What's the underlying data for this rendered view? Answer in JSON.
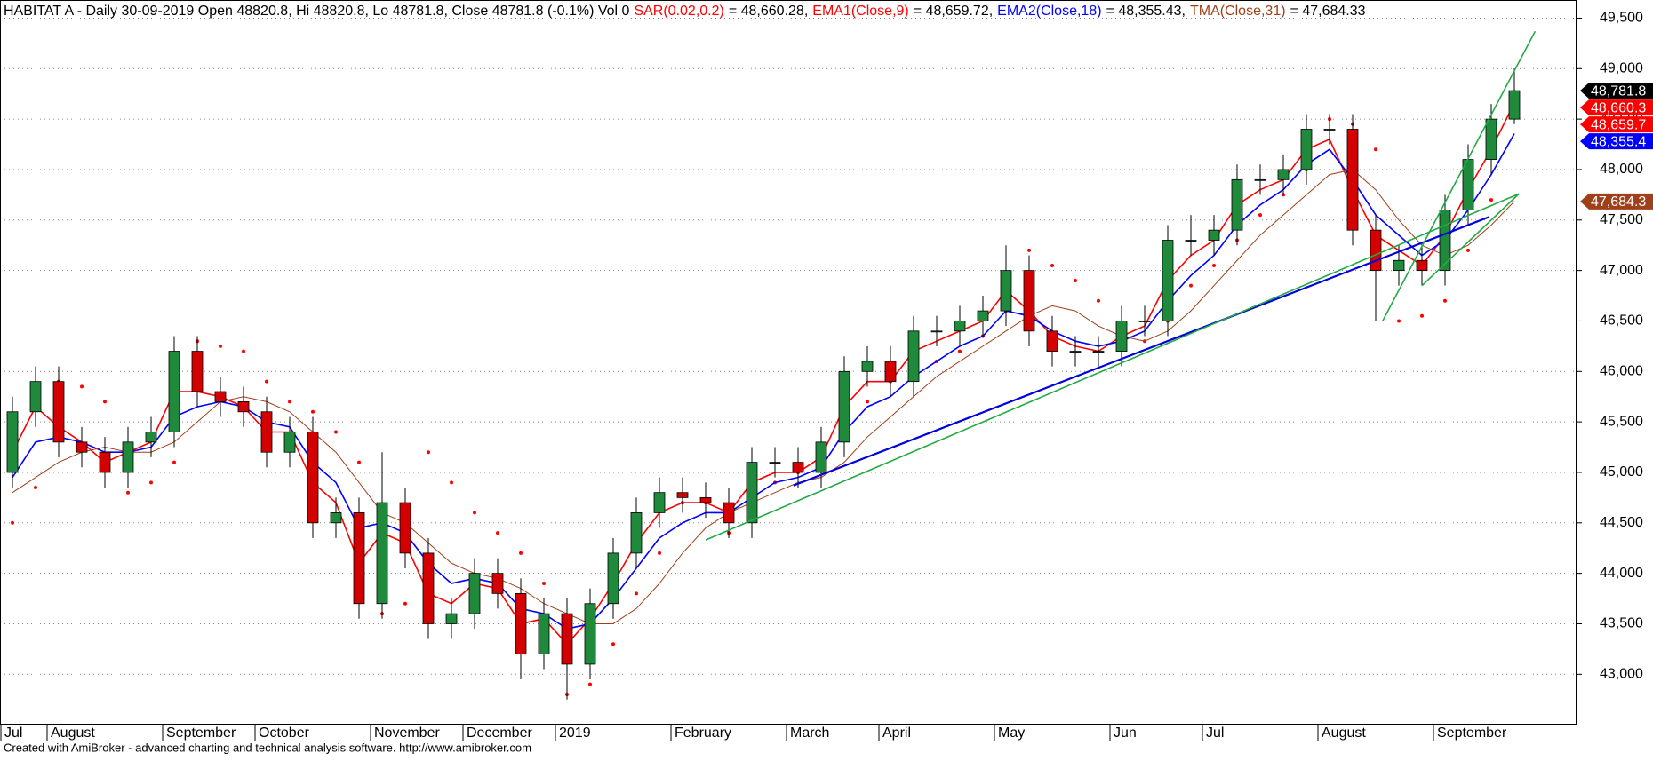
{
  "chart_data": {
    "type": "candlestick",
    "title": "HABITAT A - Daily 30-09-2019 Open 48820.8, Hi 48820.8, Lo 48781.8, Close 48781.8 (-0.1%) Vol 0",
    "footer": "Created with AmiBroker - advanced charting and technical analysis software. http://www.amibroker.com",
    "categories": [
      "Jul",
      null,
      "August",
      null,
      null,
      null,
      null,
      "September",
      null,
      null,
      null,
      "October",
      null,
      null,
      null,
      null,
      "November",
      null,
      null,
      null,
      "December",
      null,
      null,
      null,
      "2019",
      null,
      null,
      null,
      null,
      "February",
      null,
      null,
      null,
      null,
      "March",
      null,
      null,
      null,
      "April",
      null,
      null,
      null,
      null,
      "May",
      null,
      null,
      null,
      null,
      "Jun",
      null,
      null,
      null,
      "Jul",
      null,
      null,
      null,
      null,
      "August",
      null,
      null,
      null,
      null,
      "September",
      null,
      null,
      null
    ],
    "open": [
      45000,
      45600,
      45900,
      45300,
      45200,
      45000,
      45300,
      45400,
      46200,
      45800,
      45700,
      45600,
      45200,
      45400,
      44500,
      44600,
      43700,
      44700,
      44200,
      43500,
      43600,
      44000,
      43800,
      43200,
      43600,
      43100,
      43700,
      44200,
      44600,
      44800,
      44750,
      44700,
      44500,
      45100,
      45100,
      45000,
      45300,
      46000,
      46100,
      45900,
      46400,
      46400,
      46500,
      46600,
      47000,
      46400,
      46200,
      46200,
      46200,
      46500,
      46500,
      47300,
      47300,
      47400,
      47900,
      47900,
      48000,
      48400,
      48400,
      47400,
      47000,
      47100,
      47000,
      47600,
      48100,
      48500
    ],
    "high": [
      45750,
      46050,
      46050,
      45450,
      45350,
      45450,
      45550,
      46350,
      46350,
      45950,
      45850,
      45750,
      45550,
      45550,
      44750,
      44750,
      45200,
      44850,
      44350,
      43750,
      44150,
      44150,
      43950,
      43750,
      43750,
      43850,
      44350,
      44750,
      44950,
      44950,
      44900,
      44850,
      45250,
      45250,
      45250,
      45450,
      46150,
      46250,
      46250,
      46550,
      46550,
      46650,
      46750,
      47250,
      47150,
      46550,
      46350,
      46350,
      46650,
      46650,
      47450,
      47550,
      47550,
      48050,
      48050,
      48150,
      48550,
      48550,
      48550,
      47550,
      47250,
      47250,
      47750,
      48250,
      48650,
      49000
    ],
    "low": [
      44850,
      45450,
      45150,
      45050,
      44850,
      44850,
      45150,
      45250,
      45650,
      45550,
      45450,
      45050,
      45050,
      44350,
      44350,
      43550,
      43550,
      44050,
      43350,
      43350,
      43450,
      43650,
      42950,
      43050,
      42750,
      42950,
      43550,
      44050,
      44450,
      44600,
      44550,
      44350,
      44350,
      44950,
      44850,
      44850,
      45150,
      45850,
      45750,
      45750,
      46250,
      46250,
      46350,
      46450,
      46250,
      46050,
      46050,
      46050,
      46050,
      46350,
      46350,
      47150,
      47150,
      47250,
      47750,
      47750,
      47850,
      48250,
      47250,
      46500,
      46850,
      46850,
      46850,
      47450,
      47950,
      48450
    ],
    "close": [
      45600,
      45900,
      45300,
      45200,
      45000,
      45300,
      45400,
      46200,
      45800,
      45700,
      45600,
      45200,
      45400,
      44500,
      44600,
      43700,
      44700,
      44200,
      43500,
      43600,
      44000,
      43800,
      43200,
      43600,
      43100,
      43700,
      44200,
      44600,
      44800,
      44750,
      44700,
      44500,
      45100,
      45100,
      45000,
      45300,
      46000,
      46100,
      45900,
      46400,
      46400,
      46500,
      46600,
      47000,
      46400,
      46200,
      46200,
      46200,
      46500,
      46500,
      47300,
      47300,
      47400,
      47900,
      47900,
      48000,
      48400,
      48400,
      47400,
      47000,
      47100,
      47000,
      47600,
      48100,
      48500,
      48781.8
    ],
    "up_color": "#1f8a3c",
    "down_color": "#d40000",
    "indicators": [
      {
        "name": "SAR(0.02,0.2)",
        "value_label": "= 48,660.28,",
        "color": "#ff0000",
        "style": "dots",
        "values": [
          44500,
          44850,
          45900,
          45850,
          45700,
          44800,
          44900,
          45100,
          46300,
          46250,
          46200,
          45900,
          45700,
          45600,
          45400,
          45100,
          43600,
          43700,
          45200,
          44900,
          44600,
          44400,
          44200,
          43900,
          42800,
          42900,
          43300,
          43800,
          44200,
          44700,
          44700,
          44400,
          44700,
          44900,
          45000,
          45200,
          45400,
          45700,
          45900,
          46000,
          46100,
          46200,
          46350,
          46600,
          47200,
          47050,
          46900,
          46700,
          46300,
          46300,
          46500,
          46850,
          47050,
          47300,
          47550,
          47750,
          48000,
          48500,
          48450,
          48200,
          46500,
          46550,
          46700,
          47200,
          47700,
          48660.28
        ]
      },
      {
        "name": "EMA1(Close,9)",
        "value_label": "= 48,659.72,",
        "color": "#ff0000",
        "style": "line",
        "values": [
          45200,
          45650,
          45450,
          45300,
          45100,
          45200,
          45300,
          45800,
          45800,
          45750,
          45650,
          45400,
          45400,
          44900,
          44700,
          44100,
          44400,
          44300,
          43800,
          43700,
          43900,
          43850,
          43500,
          43550,
          43300,
          43550,
          43900,
          44300,
          44600,
          44700,
          44700,
          44600,
          44900,
          45000,
          45000,
          45150,
          45650,
          45900,
          45900,
          46200,
          46300,
          46400,
          46500,
          46800,
          46600,
          46350,
          46250,
          46200,
          46350,
          46450,
          46900,
          47150,
          47300,
          47650,
          47800,
          47900,
          48200,
          48300,
          47800,
          47350,
          47200,
          47050,
          47350,
          47800,
          48200,
          48659.72
        ]
      },
      {
        "name": "EMA2(Close,18)",
        "value_label": "= 48,355.43,",
        "color": "#0000ff",
        "style": "line",
        "values": [
          44950,
          45300,
          45350,
          45300,
          45200,
          45200,
          45250,
          45550,
          45650,
          45700,
          45650,
          45500,
          45450,
          45100,
          44900,
          44450,
          44500,
          44400,
          44100,
          43900,
          43950,
          43900,
          43650,
          43600,
          43450,
          43500,
          43750,
          44050,
          44350,
          44500,
          44600,
          44600,
          44750,
          44900,
          44950,
          45050,
          45400,
          45650,
          45750,
          45950,
          46100,
          46250,
          46350,
          46600,
          46550,
          46400,
          46300,
          46250,
          46300,
          46400,
          46700,
          46950,
          47150,
          47450,
          47650,
          47800,
          48050,
          48200,
          47900,
          47550,
          47350,
          47150,
          47300,
          47600,
          47950,
          48355.43
        ]
      },
      {
        "name": "TMA(Close,31)",
        "value_label": "= 47,684.33",
        "color": "#a0401a",
        "style": "thin",
        "values": [
          44800,
          44950,
          45100,
          45200,
          45250,
          45200,
          45200,
          45300,
          45500,
          45700,
          45750,
          45700,
          45600,
          45400,
          45200,
          44900,
          44600,
          44500,
          44300,
          44100,
          44000,
          43950,
          43850,
          43700,
          43600,
          43500,
          43500,
          43650,
          43900,
          44200,
          44450,
          44600,
          44700,
          44800,
          44900,
          44950,
          45100,
          45350,
          45550,
          45750,
          45950,
          46100,
          46250,
          46400,
          46550,
          46650,
          46600,
          46450,
          46350,
          46300,
          46400,
          46600,
          46850,
          47100,
          47350,
          47550,
          47750,
          47950,
          48000,
          47800,
          47500,
          47250,
          47150,
          47250,
          47450,
          47684.33
        ]
      }
    ],
    "trendlines": [
      {
        "color": "#0000dd",
        "x": [
          33.8,
          63.9
        ],
        "y": [
          44870,
          47530
        ]
      },
      {
        "color": "#22aa44",
        "x": [
          30,
          65.2
        ],
        "y": [
          44330,
          47760
        ]
      },
      {
        "color": "#22aa44",
        "x": [
          59.3,
          65.9
        ],
        "y": [
          46500,
          49370
        ]
      },
      {
        "color": "#22aa44",
        "x": [
          61,
          65.2
        ],
        "y": [
          46850,
          47760
        ]
      }
    ],
    "price_tags": [
      {
        "value": 48781.8,
        "label": "48,781.8",
        "color": "#000000"
      },
      {
        "value": 48660.3,
        "label": "48,660.3",
        "color": "#ff0000"
      },
      {
        "value": 48659.7,
        "label": "48,659.7",
        "color": "#ff0000"
      },
      {
        "value": 48355.4,
        "label": "48,355.4",
        "color": "#0000ff"
      },
      {
        "value": 47684.3,
        "label": "47,684.3",
        "color": "#a0401a"
      }
    ],
    "ylim": [
      42510,
      49680
    ],
    "yticks": [
      {
        "value": 43000,
        "label": "43,000"
      },
      {
        "value": 43500,
        "label": "43,500"
      },
      {
        "value": 44000,
        "label": "44,000"
      },
      {
        "value": 44500,
        "label": "44,500"
      },
      {
        "value": 45000,
        "label": "45,000"
      },
      {
        "value": 45500,
        "label": "45,500"
      },
      {
        "value": 46000,
        "label": "46,000"
      },
      {
        "value": 46500,
        "label": "46,500"
      },
      {
        "value": 47000,
        "label": "47,000"
      },
      {
        "value": 47500,
        "label": "47,500"
      },
      {
        "value": 48000,
        "label": "48,000"
      },
      {
        "value": 48500,
        "label": "48,500"
      },
      {
        "value": 49000,
        "label": "49,000"
      },
      {
        "value": 49500,
        "label": "49,500"
      }
    ],
    "grid": true
  }
}
